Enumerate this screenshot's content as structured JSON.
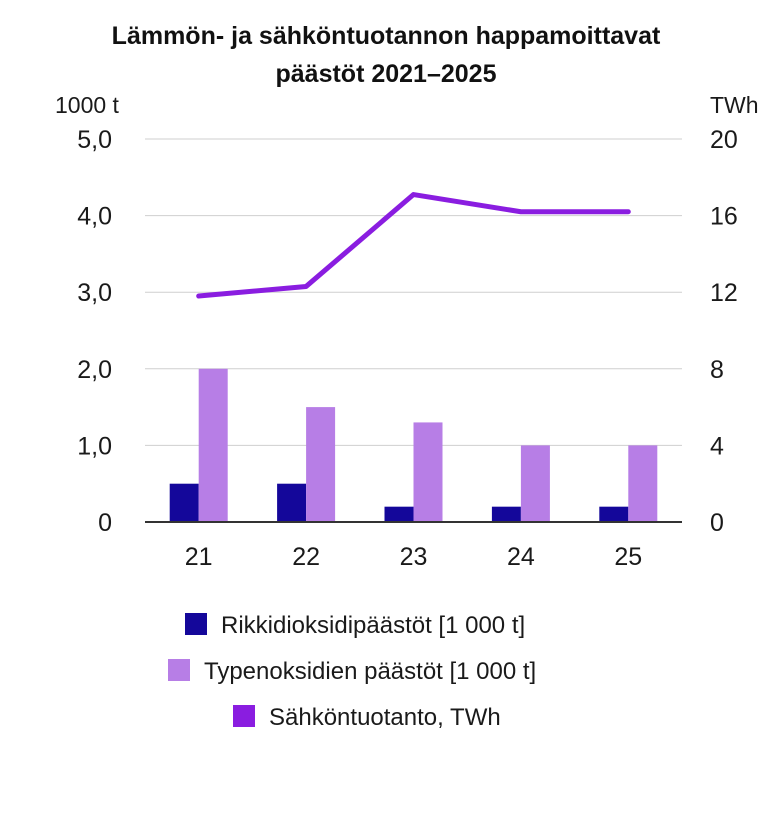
{
  "chart_data": {
    "type": "bar",
    "title_line1": "Lämmön- ja sähköntuotannon happamoittavat",
    "title_line2": "päästöt 2021–2025",
    "left_unit": "1000 t",
    "right_unit": "TWh",
    "categories": [
      "21",
      "22",
      "23",
      "24",
      "25"
    ],
    "left_ticks": [
      "0",
      "1,0",
      "2,0",
      "3,0",
      "4,0",
      "5,0"
    ],
    "right_ticks": [
      "0",
      "4",
      "8",
      "12",
      "16",
      "20"
    ],
    "ylim_left": [
      0,
      5
    ],
    "ylim_right": [
      0,
      20
    ],
    "grid": true,
    "legend_position": "bottom",
    "series": [
      {
        "name": "Rikkidioksidipäästöt [1 000 t]",
        "type": "bar",
        "axis": "left",
        "color": "#14079a",
        "values": [
          0.5,
          0.5,
          0.2,
          0.2,
          0.2
        ]
      },
      {
        "name": "Typenoksidien päästöt [1 000 t]",
        "type": "bar",
        "axis": "left",
        "color": "#b77ee6",
        "values": [
          2.0,
          1.5,
          1.3,
          1.0,
          1.0
        ]
      },
      {
        "name": "Sähköntuotanto, TWh",
        "type": "line",
        "axis": "right",
        "color": "#8a1de0",
        "values": [
          11.8,
          12.3,
          17.1,
          16.2,
          16.2
        ]
      }
    ]
  }
}
